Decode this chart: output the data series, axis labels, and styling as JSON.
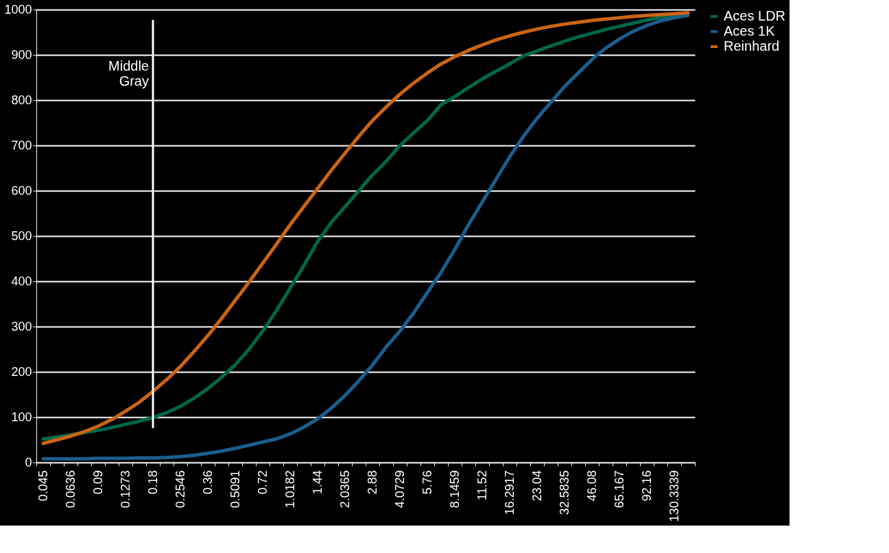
{
  "chart_data": {
    "type": "line",
    "categories": [
      "0.045",
      null,
      "0.0636",
      null,
      "0.09",
      null,
      "0.1273",
      null,
      "0.18",
      null,
      "0.2546",
      null,
      "0.36",
      null,
      "0.5091",
      null,
      "0.72",
      null,
      "1.0182",
      null,
      "1.44",
      null,
      "2.0365",
      null,
      "2.88",
      null,
      "4.0729",
      null,
      "5.76",
      null,
      "8.1459",
      null,
      "11.52",
      null,
      "16.2917",
      null,
      "23.04",
      null,
      "32.5835",
      null,
      "46.08",
      null,
      "65.167",
      null,
      "92.16",
      null,
      "130.3339",
      null
    ],
    "series": [
      {
        "name": "Aces LDR",
        "color": "#00664a",
        "values": [
          52,
          56,
          61,
          66,
          71,
          77,
          84,
          91,
          99,
          110,
          124,
          142,
          163,
          188,
          216,
          250,
          290,
          335,
          385,
          435,
          488,
          530,
          565,
          600,
          635,
          665,
          700,
          728,
          755,
          790,
          808,
          828,
          847,
          864,
          880,
          898,
          909,
          920,
          930,
          940,
          948,
          956,
          963,
          970,
          977,
          983,
          988,
          992
        ]
      },
      {
        "name": "Aces 1K",
        "color": "#1a5e8e",
        "values": [
          8,
          8,
          8,
          8,
          9,
          9,
          9,
          10,
          10,
          11,
          13,
          16,
          20,
          25,
          31,
          38,
          45,
          52,
          63,
          78,
          96,
          120,
          148,
          180,
          215,
          255,
          290,
          330,
          375,
          420,
          470,
          525,
          575,
          625,
          675,
          720,
          760,
          795,
          830,
          860,
          890,
          915,
          935,
          952,
          965,
          975,
          982,
          987
        ]
      },
      {
        "name": "Reinhard",
        "color": "#cc6414",
        "values": [
          42,
          50,
          58,
          68,
          80,
          95,
          113,
          133,
          157,
          183,
          212,
          245,
          280,
          318,
          358,
          398,
          440,
          482,
          525,
          565,
          605,
          645,
          683,
          720,
          755,
          785,
          813,
          838,
          860,
          880,
          896,
          910,
          922,
          933,
          942,
          950,
          957,
          963,
          968,
          972,
          976,
          979,
          982,
          985,
          987,
          989,
          991,
          993
        ]
      }
    ],
    "ylim": [
      0,
      1000
    ],
    "yticks": [
      0,
      100,
      200,
      300,
      400,
      500,
      600,
      700,
      800,
      900,
      1000
    ],
    "grid": "y",
    "legend": "right",
    "marker": "none",
    "line_style": "solid",
    "ref_lines": [
      {
        "axis": "x",
        "value": "0.18",
        "label": "Middle Gray",
        "color": "#ffffff"
      }
    ]
  }
}
